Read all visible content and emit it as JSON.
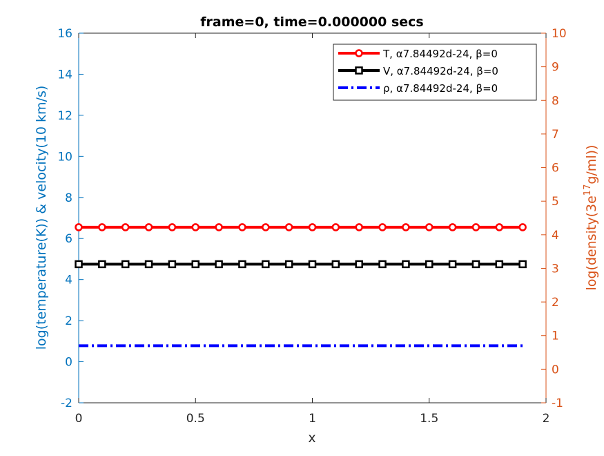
{
  "chart_data": {
    "type": "line",
    "title": "frame=0, time=0.000000 secs",
    "xlabel": "x",
    "ylabel": "log(temperature(K)) & velocity(10 km/s)",
    "y2label": [
      "log(density(3e",
      "17",
      "g/ml))"
    ],
    "x": [
      0,
      0.1,
      0.2,
      0.3,
      0.4,
      0.5,
      0.6,
      0.7,
      0.8,
      0.9,
      1,
      1.1,
      1.2,
      1.3,
      1.4,
      1.5,
      1.6,
      1.7,
      1.8,
      1.9
    ],
    "series": [
      {
        "name": "T, α7.84492d-24, β=0",
        "color": "#ff0000",
        "marker": "circle",
        "dash": "solid",
        "values": [
          6.55,
          6.55,
          6.55,
          6.55,
          6.55,
          6.55,
          6.55,
          6.55,
          6.55,
          6.55,
          6.55,
          6.55,
          6.55,
          6.55,
          6.55,
          6.55,
          6.55,
          6.55,
          6.55,
          6.55
        ]
      },
      {
        "name": "V, α7.84492d-24, β=0",
        "color": "#000000",
        "marker": "square",
        "dash": "solid",
        "values": [
          4.75,
          4.75,
          4.75,
          4.75,
          4.75,
          4.75,
          4.75,
          4.75,
          4.75,
          4.75,
          4.75,
          4.75,
          4.75,
          4.75,
          4.75,
          4.75,
          4.75,
          4.75,
          4.75,
          4.75
        ]
      },
      {
        "name": "ρ, α7.84492d-24, β=0",
        "color": "#0000ff",
        "marker": "none",
        "dash": "dashdot",
        "axis": "y2",
        "values": [
          0.7,
          0.7,
          0.7,
          0.7,
          0.7,
          0.7,
          0.7,
          0.7,
          0.7,
          0.7,
          0.7,
          0.7,
          0.7,
          0.7,
          0.7,
          0.7,
          0.7,
          0.7,
          0.7,
          0.7
        ]
      }
    ],
    "xlim": [
      0,
      2
    ],
    "xticks": [
      0,
      0.5,
      1,
      1.5,
      2
    ],
    "ylim": [
      -2,
      16
    ],
    "yticks": [
      -2,
      0,
      2,
      4,
      6,
      8,
      10,
      12,
      14,
      16
    ],
    "y2lim": [
      -1,
      10
    ],
    "y2ticks": [
      -1,
      0,
      1,
      2,
      3,
      4,
      5,
      6,
      7,
      8,
      9,
      10
    ],
    "y_color": "#0072bd",
    "y2_color": "#d95319",
    "legend": "upper right",
    "grid": false
  }
}
